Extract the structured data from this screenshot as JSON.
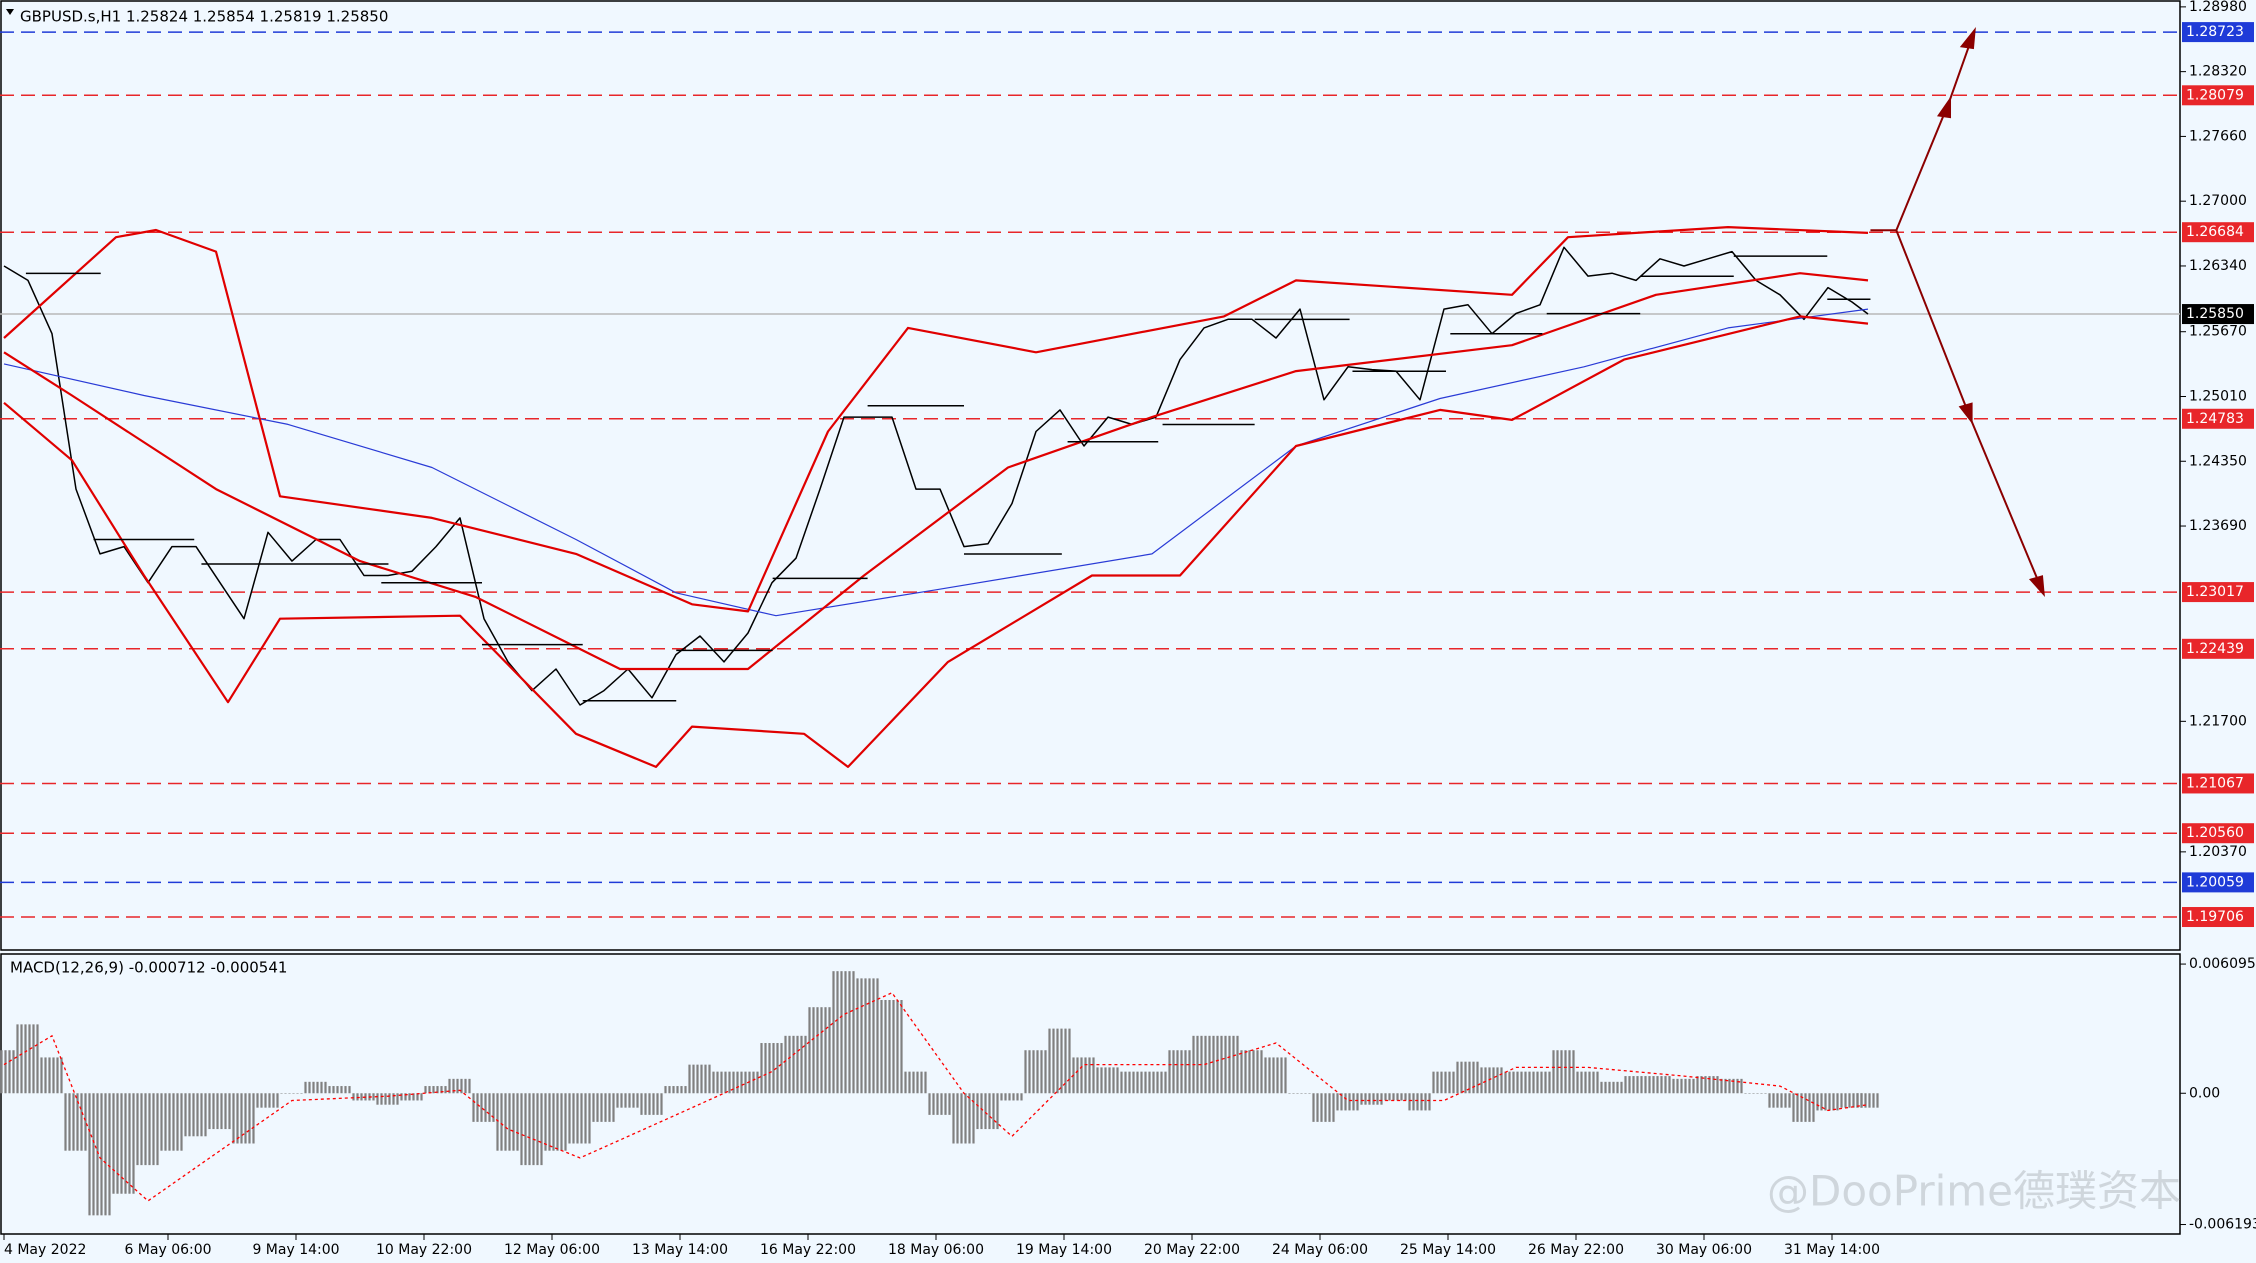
{
  "chart_data": [
    {
      "type": "line",
      "header": "GBPUSD.s,H1  1.25824 1.25854 1.25819 1.25850",
      "watermark": "@DooPrime德璞资本",
      "xlim": [
        -1,
        544
      ],
      "ylim": [
        1.1937,
        1.2905
      ],
      "yticks": [
        {
          "value": 1.2898,
          "label": "1.28980"
        },
        {
          "value": 1.2832,
          "label": "1.28320"
        },
        {
          "value": 1.2766,
          "label": "1.27660"
        },
        {
          "value": 1.27,
          "label": "1.27000"
        },
        {
          "value": 1.2634,
          "label": "1.26340"
        },
        {
          "value": 1.2567,
          "label": "1.25670"
        },
        {
          "value": 1.2501,
          "label": "1.25010"
        },
        {
          "value": 1.2435,
          "label": "1.24350"
        },
        {
          "value": 1.2369,
          "label": "1.23690"
        },
        {
          "value": 1.217,
          "label": "1.21700"
        },
        {
          "value": 1.2037,
          "label": "1.20370"
        }
      ],
      "xticks": [
        {
          "value": 0,
          "label": "4 May 2022"
        },
        {
          "value": 41,
          "label": "6 May 06:00"
        },
        {
          "value": 73,
          "label": "9 May 14:00"
        },
        {
          "value": 105,
          "label": "10 May 22:00"
        },
        {
          "value": 137,
          "label": "12 May 06:00"
        },
        {
          "value": 169,
          "label": "13 May 14:00"
        },
        {
          "value": 201,
          "label": "16 May 22:00"
        },
        {
          "value": 233,
          "label": "18 May 06:00"
        },
        {
          "value": 265,
          "label": "19 May 14:00"
        },
        {
          "value": 297,
          "label": "20 May 22:00"
        },
        {
          "value": 329,
          "label": "24 May 06:00"
        },
        {
          "value": 361,
          "label": "25 May 14:00"
        },
        {
          "value": 393,
          "label": "26 May 22:00"
        },
        {
          "value": 425,
          "label": "30 May 06:00"
        },
        {
          "value": 457,
          "label": "31 May 14:00"
        }
      ],
      "levels": [
        {
          "value": 1.28723,
          "color": "#1f3bd8",
          "style": "dashed"
        },
        {
          "value": 1.28079,
          "color": "#e8262a",
          "style": "dashed"
        },
        {
          "value": 1.26684,
          "color": "#e8262a",
          "style": "dashed"
        },
        {
          "value": 1.2585,
          "label": "1.25850",
          "color": "#000000",
          "style": "solid"
        },
        {
          "value": 1.24783,
          "color": "#e8262a",
          "style": "dashed"
        },
        {
          "value": 1.23017,
          "color": "#e8262a",
          "style": "dashed"
        },
        {
          "value": 1.22439,
          "color": "#e8262a",
          "style": "dashed"
        },
        {
          "value": 1.21067,
          "color": "#e8262a",
          "style": "dashed"
        },
        {
          "value": 1.2056,
          "label": "1.20560",
          "color": "#e8262a",
          "style": "dashed"
        },
        {
          "value": 1.20059,
          "color": "#1f3bd8",
          "style": "dashed"
        },
        {
          "value": 1.19706,
          "color": "#e8262a",
          "style": "dashed"
        }
      ],
      "series": [
        {
          "color": "#000000",
          "width": 1.5,
          "x": [
            0,
            6,
            12,
            18,
            24,
            30,
            36,
            42,
            48,
            54,
            60,
            66,
            72,
            78,
            84,
            90,
            96,
            102,
            108,
            114,
            120,
            126,
            132,
            138,
            144,
            150,
            156,
            162,
            168,
            174,
            180,
            186,
            192,
            198,
            204,
            210,
            216,
            222,
            228,
            234,
            240,
            246,
            252,
            258,
            264,
            270,
            276,
            282,
            288,
            294,
            300,
            306,
            312,
            318,
            324,
            330,
            336,
            342,
            348,
            354,
            360,
            366,
            372,
            378,
            384,
            390,
            396,
            402,
            408,
            414,
            420,
            426,
            432,
            438,
            444,
            450,
            456,
            462,
            466
          ],
          "values": [
            1.2634,
            1.26193,
            1.2565,
            1.24066,
            1.23406,
            1.2348,
            1.23113,
            1.2348,
            1.2348,
            1.23113,
            1.22746,
            1.23626,
            1.23333,
            1.23553,
            1.23553,
            1.23186,
            1.23186,
            1.2323,
            1.2348,
            1.23773,
            1.22746,
            1.22306,
            1.22013,
            1.22233,
            1.21866,
            1.22013,
            1.22233,
            1.2194,
            1.2238,
            1.2257,
            1.22306,
            1.226,
            1.23113,
            1.23362,
            1.24066,
            1.248,
            1.248,
            1.248,
            1.24066,
            1.24066,
            1.2348,
            1.23509,
            1.2392,
            1.24653,
            1.24873,
            1.24506,
            1.248,
            1.24726,
            1.248,
            1.25386,
            1.25709,
            1.25797,
            1.25797,
            1.25606,
            1.259,
            1.24976,
            1.25313,
            1.25284,
            1.25269,
            1.24976,
            1.259,
            1.25944,
            1.2565,
            1.25856,
            1.25944,
            1.2653,
            1.26237,
            1.26266,
            1.26193,
            1.26413,
            1.2634,
            1.26413,
            1.26486,
            1.26193,
            1.26046,
            1.25797,
            1.2612,
            1.25973,
            1.2585
          ]
        },
        {
          "color": "#2a3bd6",
          "width": 1.2,
          "x": [
            0,
            35,
            71,
            107,
            143,
            168,
            193,
            233,
            287,
            323,
            359,
            395,
            431,
            466
          ],
          "values": [
            1.25342,
            1.2502,
            1.24726,
            1.24286,
            1.23553,
            1.2301,
            1.22776,
            1.2304,
            1.23406,
            1.24506,
            1.2499,
            1.25313,
            1.25709,
            1.259
          ]
        },
        {
          "color": "#e00000",
          "width": 2.2,
          "x": [
            0,
            28,
            38,
            53,
            69,
            107,
            143,
            172,
            186,
            206,
            226,
            258,
            305,
            323,
            377,
            391,
            431,
            466
          ],
          "values": [
            1.25606,
            1.26633,
            1.26706,
            1.26486,
            1.23993,
            1.23773,
            1.23406,
            1.22893,
            1.2282,
            1.24653,
            1.25709,
            1.2546,
            1.25826,
            1.26193,
            1.26046,
            1.26633,
            1.26736,
            1.26677
          ]
        },
        {
          "color": "#e00000",
          "width": 2.2,
          "x": [
            0,
            17,
            53,
            89,
            118,
            154,
            186,
            215,
            251,
            287,
            323,
            377,
            413,
            449,
            466
          ],
          "values": [
            1.2546,
            1.2502,
            1.24066,
            1.23333,
            1.22966,
            1.22233,
            1.22233,
            1.23186,
            1.24286,
            1.248,
            1.25269,
            1.25533,
            1.26046,
            1.26266,
            1.26193
          ]
        },
        {
          "color": "#e00000",
          "width": 2.2,
          "x": [
            0,
            17,
            35,
            56,
            69,
            114,
            143,
            163,
            172,
            200,
            211,
            236,
            272,
            294,
            323,
            359,
            377,
            405,
            449,
            466
          ],
          "values": [
            1.24946,
            1.2436,
            1.23186,
            1.21895,
            1.22746,
            1.22776,
            1.21573,
            1.21236,
            1.21646,
            1.21573,
            1.21236,
            1.22306,
            1.23186,
            1.23186,
            1.24506,
            1.24873,
            1.24771,
            1.25386,
            1.25826,
            1.25753
          ]
        }
      ]
    },
    {
      "type": "bar",
      "title": "MACD(12,26,9) -0.000712 -0.000541",
      "xlim": [
        -1,
        544
      ],
      "ylim": [
        -0.00664,
        0.00657
      ],
      "yticks": [
        0.006095,
        {
          "value": 0,
          "label": "0.00"
        },
        -0.006193
      ],
      "color": "#808080",
      "x": [
        0,
        6,
        12,
        18,
        24,
        30,
        36,
        42,
        48,
        54,
        60,
        66,
        72,
        78,
        84,
        90,
        96,
        102,
        108,
        114,
        120,
        126,
        132,
        138,
        144,
        150,
        156,
        162,
        168,
        174,
        180,
        186,
        192,
        198,
        204,
        210,
        216,
        222,
        228,
        234,
        240,
        246,
        252,
        258,
        264,
        270,
        276,
        282,
        288,
        294,
        300,
        306,
        312,
        318,
        324,
        330,
        336,
        342,
        348,
        354,
        360,
        366,
        372,
        378,
        384,
        390,
        396,
        402,
        408,
        414,
        420,
        426,
        432,
        438,
        444,
        450,
        456,
        462,
        466
      ],
      "values": [
        0.00203,
        0.00325,
        0.00169,
        -0.00271,
        -0.00576,
        -0.00474,
        -0.00339,
        -0.00271,
        -0.00203,
        -0.00169,
        -0.00237,
        -0.00068,
        0,
        0.00054,
        0.00034,
        -0.00034,
        -0.00054,
        -0.00034,
        0.00034,
        0.00068,
        -0.00135,
        -0.00271,
        -0.00339,
        -0.00271,
        -0.00237,
        -0.00135,
        -0.00068,
        -0.00102,
        0.00034,
        0.00135,
        0.00102,
        0.00102,
        0.00237,
        0.00271,
        0.00406,
        0.00576,
        0.00542,
        0.0044,
        0.00102,
        -0.00102,
        -0.00237,
        -0.00169,
        -0.00034,
        0.00203,
        0.00305,
        0.00169,
        0.00122,
        0.00102,
        0.00102,
        0.00203,
        0.00271,
        0.00271,
        0.00203,
        0.00169,
        0,
        -0.00135,
        -0.00081,
        -0.00054,
        -0.00034,
        -0.00081,
        0.00102,
        0.00149,
        0.00122,
        0.00102,
        0.00102,
        0.00203,
        0.00102,
        0.00054,
        0.00081,
        0.00081,
        0.00068,
        0.00081,
        0.00068,
        0,
        -0.00068,
        -0.00135,
        -0.00081,
        -0.00068,
        -0.00068
      ],
      "signal": {
        "color": "#ff0000",
        "x": [
          0,
          12,
          24,
          36,
          54,
          72,
          96,
          114,
          126,
          144,
          168,
          192,
          210,
          222,
          240,
          252,
          270,
          300,
          318,
          336,
          360,
          378,
          396,
          420,
          444,
          456,
          466
        ],
        "values": [
          0.00135,
          0.00271,
          -0.00305,
          -0.00508,
          -0.00271,
          -0.00034,
          -0.00014,
          0.00014,
          -0.00169,
          -0.00305,
          -0.00102,
          0.00102,
          0.00372,
          0.00474,
          0,
          -0.00203,
          0.00135,
          0.00135,
          0.00237,
          -0.00034,
          -0.00034,
          0.00122,
          0.00122,
          0.00081,
          0.00034,
          -0.00081,
          -0.00054
        ]
      }
    }
  ]
}
